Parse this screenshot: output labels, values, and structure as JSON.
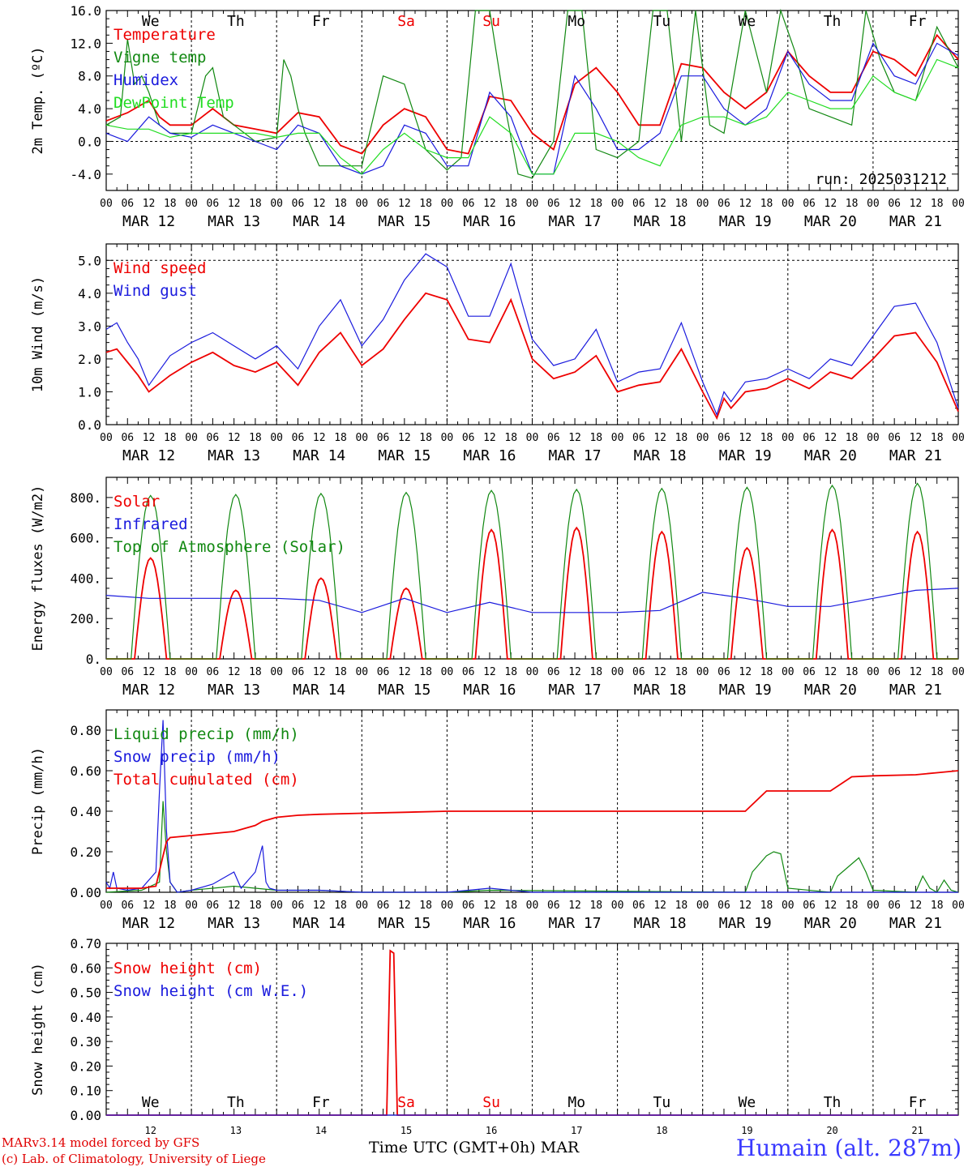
{
  "colors": {
    "red": "#ee0000",
    "green": "#118811",
    "blue": "#1a1add",
    "lightgreen": "#22dd22",
    "axis": "#000000"
  },
  "days": [
    "We",
    "Th",
    "Fr",
    "Sa",
    "Su",
    "Mo",
    "Tu",
    "We",
    "Th",
    "Fr"
  ],
  "day_colors": [
    "#000000",
    "#000000",
    "#000000",
    "#ee0000",
    "#ee0000",
    "#000000",
    "#000000",
    "#000000",
    "#000000",
    "#000000"
  ],
  "date_labels": [
    "MAR 12",
    "MAR 13",
    "MAR 14",
    "MAR 15",
    "MAR 16",
    "MAR 17",
    "MAR 18",
    "MAR 19",
    "MAR 20",
    "MAR 21"
  ],
  "hour_ticks": [
    "00",
    "06",
    "12",
    "18"
  ],
  "bottom_dates": [
    "12",
    "13",
    "14",
    "15",
    "16",
    "17",
    "18",
    "19",
    "20",
    "21"
  ],
  "footer": {
    "model": "MARv3.14 model forced by GFS",
    "lab": "(c) Lab. of Climatology, University of Liege",
    "time_label": "Time UTC (GMT+0h)",
    "month": "MAR",
    "station": "Humain (alt. 287m)"
  },
  "chart_data": [
    {
      "type": "line",
      "ylabel": "2m Temp. (ºC)",
      "ylim": [
        -6,
        16
      ],
      "yticks": [
        "-4.0",
        "0.0",
        "4.0",
        "8.0",
        "12.0",
        "16.0"
      ],
      "ytick_values": [
        -4,
        0,
        4,
        8,
        12,
        16
      ],
      "zero_line": 0,
      "annotation": "run: 2025031212",
      "x_hours": [
        0,
        240
      ],
      "series": [
        {
          "name": "Temperature",
          "color": "red",
          "x": [
            0,
            6,
            12,
            15,
            18,
            24,
            30,
            36,
            42,
            48,
            54,
            60,
            66,
            72,
            78,
            84,
            90,
            96,
            102,
            108,
            114,
            120,
            126,
            132,
            138,
            144,
            150,
            156,
            162,
            168,
            174,
            180,
            186,
            192,
            198,
            204,
            210,
            216,
            222,
            228,
            234,
            240
          ],
          "y": [
            2.5,
            3.5,
            5,
            3,
            2,
            2,
            4,
            2,
            1.5,
            1,
            3.5,
            3,
            -0.5,
            -1.5,
            2,
            4,
            3,
            -1,
            -1.5,
            5.5,
            5,
            1,
            -1,
            7,
            9,
            6,
            2,
            2,
            9.5,
            9,
            6,
            4,
            6,
            11,
            8,
            6,
            6,
            11,
            10,
            8,
            13,
            10
          ]
        },
        {
          "name": "Vigne temp",
          "color": "green",
          "x": [
            0,
            4,
            6,
            8,
            10,
            12,
            15,
            18,
            24,
            28,
            30,
            33,
            36,
            42,
            48,
            50,
            52,
            54,
            56,
            60,
            66,
            72,
            78,
            84,
            90,
            96,
            100,
            104,
            108,
            112,
            116,
            120,
            126,
            130,
            134,
            138,
            144,
            150,
            154,
            158,
            162,
            166,
            170,
            174,
            180,
            186,
            190,
            194,
            198,
            204,
            210,
            214,
            218,
            222,
            228,
            234,
            240
          ],
          "y": [
            2,
            3,
            12.5,
            7,
            8,
            6,
            2,
            1,
            1,
            8,
            9,
            3,
            2,
            0,
            0.5,
            10,
            8,
            4,
            1,
            -3,
            -3,
            -3,
            8,
            7,
            -1,
            -3.5,
            -2,
            16,
            16,
            5,
            -4,
            -4.5,
            0,
            16,
            16,
            -1,
            -2,
            0,
            16,
            16,
            0,
            16,
            2,
            1,
            16,
            6,
            16,
            11,
            4,
            3,
            2,
            16,
            10,
            6,
            5,
            14,
            9
          ]
        },
        {
          "name": "Humidex",
          "color": "blue",
          "x": [
            0,
            6,
            12,
            18,
            24,
            30,
            36,
            42,
            48,
            54,
            60,
            66,
            72,
            78,
            84,
            90,
            96,
            102,
            108,
            114,
            120,
            126,
            132,
            138,
            144,
            150,
            156,
            162,
            168,
            174,
            180,
            186,
            192,
            198,
            204,
            210,
            216,
            222,
            228,
            234,
            240
          ],
          "y": [
            1,
            0,
            3,
            1,
            0.5,
            2,
            1,
            0,
            -1,
            2,
            1,
            -3,
            -4,
            -3,
            2,
            1,
            -3,
            -3,
            6,
            3,
            -4,
            -4,
            8,
            4,
            -1,
            -1,
            1,
            8,
            8,
            4,
            2,
            4,
            11,
            7,
            5,
            5,
            12,
            8,
            7,
            12,
            10.5
          ]
        },
        {
          "name": "DewPoint Temp",
          "color": "lightgreen",
          "x": [
            0,
            6,
            12,
            18,
            24,
            30,
            36,
            42,
            48,
            54,
            60,
            66,
            72,
            78,
            84,
            90,
            96,
            102,
            108,
            114,
            120,
            126,
            132,
            138,
            144,
            150,
            156,
            162,
            168,
            174,
            180,
            186,
            192,
            198,
            204,
            210,
            216,
            222,
            228,
            234,
            240
          ],
          "y": [
            2,
            1.5,
            1.5,
            0.5,
            1,
            1,
            1,
            1,
            0.5,
            1,
            1,
            -2,
            -4,
            -1,
            1,
            -1,
            -2,
            -2,
            3,
            1,
            -4,
            -4,
            1,
            1,
            0,
            -2,
            -3,
            2,
            3,
            3,
            2,
            3,
            6,
            5,
            4,
            4,
            8,
            6,
            5,
            10,
            9
          ]
        }
      ]
    },
    {
      "type": "line",
      "ylabel": "10m Wind (m/s)",
      "ylim": [
        0,
        5.5
      ],
      "yticks": [
        "0.0",
        "1.0",
        "2.0",
        "3.0",
        "4.0",
        "5.0"
      ],
      "ytick_values": [
        0,
        1,
        2,
        3,
        4,
        5
      ],
      "ref_line": 5,
      "series": [
        {
          "name": "Wind speed",
          "color": "red",
          "x": [
            0,
            3,
            6,
            9,
            12,
            18,
            24,
            30,
            36,
            42,
            48,
            54,
            60,
            66,
            72,
            78,
            84,
            90,
            96,
            102,
            108,
            114,
            120,
            126,
            132,
            138,
            144,
            150,
            156,
            162,
            168,
            172,
            174,
            176,
            180,
            186,
            192,
            198,
            204,
            210,
            216,
            222,
            228,
            234,
            240
          ],
          "y": [
            2.2,
            2.3,
            1.9,
            1.5,
            1.0,
            1.5,
            1.9,
            2.2,
            1.8,
            1.6,
            1.9,
            1.2,
            2.2,
            2.8,
            1.8,
            2.3,
            3.2,
            4.0,
            3.8,
            2.6,
            2.5,
            3.8,
            2.0,
            1.4,
            1.6,
            2.1,
            1.0,
            1.2,
            1.3,
            2.3,
            1.0,
            0.2,
            0.8,
            0.5,
            1.0,
            1.1,
            1.4,
            1.1,
            1.6,
            1.4,
            2.0,
            2.7,
            2.8,
            1.9,
            0.4
          ]
        },
        {
          "name": "Wind gust",
          "color": "blue",
          "x": [
            0,
            3,
            6,
            9,
            12,
            18,
            24,
            30,
            36,
            42,
            48,
            54,
            60,
            66,
            72,
            78,
            84,
            90,
            96,
            102,
            108,
            114,
            120,
            126,
            132,
            138,
            144,
            150,
            156,
            162,
            168,
            172,
            174,
            176,
            180,
            186,
            192,
            198,
            204,
            210,
            216,
            222,
            228,
            234,
            240
          ],
          "y": [
            2.9,
            3.1,
            2.5,
            2.0,
            1.2,
            2.1,
            2.5,
            2.8,
            2.4,
            2.0,
            2.4,
            1.7,
            3.0,
            3.8,
            2.4,
            3.2,
            4.4,
            5.2,
            4.8,
            3.3,
            3.3,
            4.9,
            2.6,
            1.8,
            2.0,
            2.9,
            1.3,
            1.6,
            1.7,
            3.1,
            1.3,
            0.3,
            1.0,
            0.7,
            1.3,
            1.4,
            1.7,
            1.4,
            2.0,
            1.8,
            2.7,
            3.6,
            3.7,
            2.5,
            0.5
          ]
        }
      ]
    },
    {
      "type": "line",
      "ylabel": "Energy fluxes (W/m2)",
      "ylim": [
        0,
        900
      ],
      "yticks": [
        "0.",
        "200.",
        "400.",
        "600.",
        "800."
      ],
      "ytick_values": [
        0,
        200,
        400,
        600,
        800
      ],
      "series": [
        {
          "name": "Solar",
          "color": "red",
          "peaks": [
            500,
            340,
            400,
            350,
            640,
            650,
            630,
            550,
            640,
            630
          ]
        },
        {
          "name": "Infrared",
          "color": "blue",
          "x": [
            0,
            12,
            24,
            36,
            48,
            60,
            72,
            84,
            96,
            108,
            120,
            132,
            144,
            156,
            168,
            180,
            192,
            204,
            216,
            228,
            240
          ],
          "y": [
            315,
            300,
            300,
            300,
            300,
            290,
            230,
            300,
            230,
            280,
            230,
            230,
            230,
            240,
            330,
            300,
            260,
            260,
            300,
            340,
            350
          ]
        },
        {
          "name": "Top of Atmosphere (Solar)",
          "color": "green",
          "peaks": [
            810,
            815,
            820,
            825,
            835,
            840,
            845,
            850,
            860,
            870
          ]
        }
      ]
    },
    {
      "type": "line",
      "ylabel": "Precip (mm/h)",
      "ylim": [
        0,
        0.9
      ],
      "yticks": [
        "0.00",
        "0.20",
        "0.40",
        "0.60",
        "0.80"
      ],
      "ytick_values": [
        0,
        0.2,
        0.4,
        0.6,
        0.8
      ],
      "series": [
        {
          "name": "Liquid precip (mm/h)",
          "color": "green",
          "x": [
            0,
            10,
            15,
            16,
            17,
            18,
            20,
            24,
            30,
            36,
            42,
            48,
            60,
            72,
            96,
            108,
            180,
            182,
            186,
            188,
            190,
            192,
            204,
            206,
            210,
            212,
            214,
            216,
            228,
            230,
            232,
            234,
            236,
            238,
            240
          ],
          "y": [
            0,
            0.01,
            0.05,
            0.45,
            0.2,
            0.05,
            0,
            0.01,
            0.02,
            0.03,
            0.02,
            0.01,
            0.01,
            0,
            0,
            0.01,
            0,
            0.1,
            0.18,
            0.2,
            0.19,
            0.02,
            0,
            0.08,
            0.14,
            0.17,
            0.1,
            0.01,
            0,
            0.08,
            0.02,
            0,
            0.06,
            0.01,
            0
          ]
        },
        {
          "name": "Snow precip (mm/h)",
          "color": "blue",
          "x": [
            0,
            1,
            2,
            3,
            6,
            10,
            14,
            15,
            16,
            17,
            18,
            20,
            24,
            30,
            36,
            38,
            42,
            44,
            45,
            46,
            48,
            60,
            72,
            84,
            96,
            108,
            120,
            240
          ],
          "y": [
            0.05,
            0.02,
            0.1,
            0.02,
            0.01,
            0.02,
            0.1,
            0.5,
            0.85,
            0.3,
            0.05,
            0,
            0.01,
            0.04,
            0.1,
            0.02,
            0.1,
            0.23,
            0.05,
            0.02,
            0.01,
            0.01,
            0,
            0,
            0,
            0.02,
            0,
            0
          ]
        },
        {
          "name": "Total cumulated (cm)",
          "color": "red",
          "x": [
            0,
            10,
            14,
            16,
            17,
            18,
            24,
            30,
            36,
            42,
            44,
            48,
            54,
            60,
            72,
            84,
            96,
            108,
            120,
            144,
            168,
            180,
            186,
            192,
            204,
            210,
            216,
            228,
            234,
            240
          ],
          "y": [
            0.02,
            0.02,
            0.03,
            0.18,
            0.25,
            0.27,
            0.28,
            0.29,
            0.3,
            0.33,
            0.35,
            0.37,
            0.38,
            0.385,
            0.39,
            0.395,
            0.4,
            0.4,
            0.4,
            0.4,
            0.4,
            0.4,
            0.5,
            0.5,
            0.5,
            0.57,
            0.575,
            0.58,
            0.59,
            0.6
          ]
        }
      ]
    },
    {
      "type": "line",
      "ylabel": "Snow height (cm)",
      "ylim": [
        0,
        0.7
      ],
      "yticks": [
        "0.00",
        "0.10",
        "0.20",
        "0.30",
        "0.40",
        "0.50",
        "0.60",
        "0.70"
      ],
      "ytick_values": [
        0,
        0.1,
        0.2,
        0.3,
        0.4,
        0.5,
        0.6,
        0.7
      ],
      "series": [
        {
          "name": "Snow height (cm)",
          "color": "red",
          "x": [
            0,
            79,
            80,
            81,
            82,
            240
          ],
          "y": [
            0,
            0,
            0.67,
            0.66,
            0,
            0
          ]
        },
        {
          "name": "Snow height (cm W.E.)",
          "color": "blue",
          "x": [
            0,
            240
          ],
          "y": [
            0,
            0
          ]
        }
      ]
    }
  ]
}
